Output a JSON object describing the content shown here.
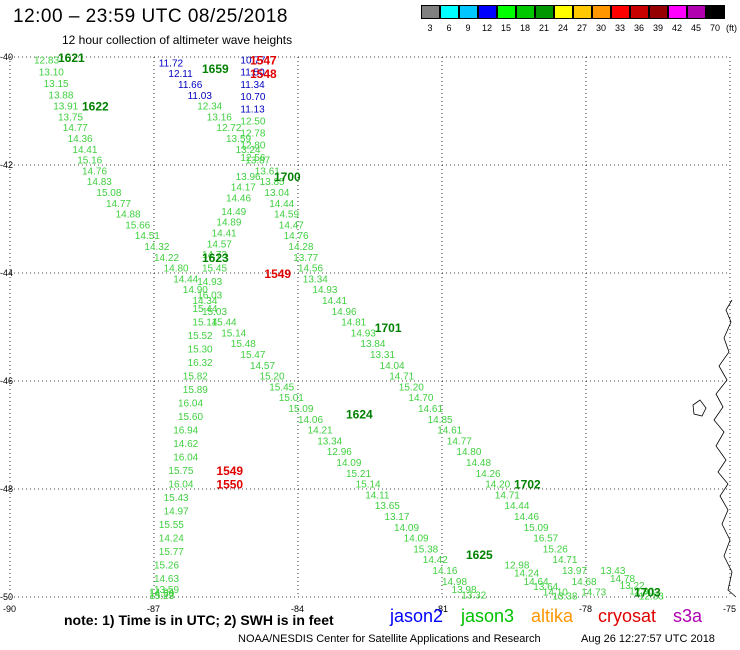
{
  "header": {
    "title": "12:00 – 23:59 UTC 08/25/2018",
    "subtitle": "12 hour collection of altimeter wave heights"
  },
  "colorbar": {
    "colors": [
      "#808080",
      "#00ffff",
      "#00c8ff",
      "#0000ff",
      "#00ff00",
      "#00c800",
      "#009600",
      "#ffff00",
      "#ffc800",
      "#ff9600",
      "#ff0000",
      "#c80000",
      "#960000",
      "#ff00ff",
      "#b000b0",
      "#000000"
    ],
    "labels": [
      "3",
      "6",
      "9",
      "12",
      "15",
      "18",
      "21",
      "24",
      "27",
      "30",
      "33",
      "36",
      "39",
      "42",
      "45",
      "70"
    ],
    "unit": "(ft)"
  },
  "chart_data": {
    "type": "scatter",
    "title": "12:00 – 23:59 UTC 08/25/2018",
    "subtitle": "12 hour collection of altimeter wave heights",
    "xlim": [
      -90,
      -75
    ],
    "ylim": [
      -50,
      -40
    ],
    "x_ticks": [
      -90,
      -87,
      -84,
      -81,
      -78,
      -75
    ],
    "y_ticks": [
      -40,
      -42,
      -44,
      -46,
      -48,
      -50
    ],
    "grid": true,
    "track_points": [
      {
        "lon": -89.5,
        "lat": -40.05,
        "v": "12.83",
        "s": "jason3"
      },
      {
        "lon": -89.4,
        "lat": -40.27,
        "v": "13.10",
        "s": "jason3"
      },
      {
        "lon": -89.3,
        "lat": -40.48,
        "v": "13.15",
        "s": "jason3"
      },
      {
        "lon": -89.2,
        "lat": -40.69,
        "v": "13.88",
        "s": "jason3"
      },
      {
        "lon": -89.1,
        "lat": -40.9,
        "v": "13.91",
        "s": "jason3"
      },
      {
        "lon": -89.0,
        "lat": -41.1,
        "v": "13.75",
        "s": "jason3"
      },
      {
        "lon": -88.9,
        "lat": -41.3,
        "v": "14.77",
        "s": "jason3"
      },
      {
        "lon": -88.8,
        "lat": -41.5,
        "v": "14.36",
        "s": "jason3"
      },
      {
        "lon": -88.7,
        "lat": -41.7,
        "v": "14.41",
        "s": "jason3"
      },
      {
        "lon": -88.6,
        "lat": -41.9,
        "v": "15.16",
        "s": "jason3"
      },
      {
        "lon": -88.5,
        "lat": -42.1,
        "v": "14.76",
        "s": "jason3"
      },
      {
        "lon": -88.4,
        "lat": -42.3,
        "v": "14.83",
        "s": "jason3"
      },
      {
        "lon": -88.2,
        "lat": -42.5,
        "v": "15.08",
        "s": "jason3"
      },
      {
        "lon": -88.0,
        "lat": -42.7,
        "v": "14.77",
        "s": "jason3"
      },
      {
        "lon": -87.8,
        "lat": -42.9,
        "v": "14.88",
        "s": "jason3"
      },
      {
        "lon": -87.6,
        "lat": -43.1,
        "v": "15.66",
        "s": "jason3"
      },
      {
        "lon": -87.4,
        "lat": -43.3,
        "v": "14.51",
        "s": "jason3"
      },
      {
        "lon": -87.2,
        "lat": -43.5,
        "v": "14.32",
        "s": "jason3"
      },
      {
        "lon": -87.0,
        "lat": -43.7,
        "v": "14.22",
        "s": "jason3"
      },
      {
        "lon": -86.8,
        "lat": -43.9,
        "v": "14.80",
        "s": "jason3"
      },
      {
        "lon": -86.6,
        "lat": -44.1,
        "v": "14.44",
        "s": "jason3"
      },
      {
        "lon": -86.4,
        "lat": -44.3,
        "v": "14.90",
        "s": "jason3"
      },
      {
        "lon": -86.2,
        "lat": -44.5,
        "v": "14.34",
        "s": "jason3"
      },
      {
        "lon": -86.0,
        "lat": -44.7,
        "v": "15.03",
        "s": "jason3"
      },
      {
        "lon": -85.8,
        "lat": -44.9,
        "v": "15.44",
        "s": "jason3"
      },
      {
        "lon": -85.6,
        "lat": -45.1,
        "v": "15.14",
        "s": "jason3"
      },
      {
        "lon": -85.4,
        "lat": -45.3,
        "v": "15.48",
        "s": "jason3"
      },
      {
        "lon": -85.2,
        "lat": -45.5,
        "v": "15.47",
        "s": "jason3"
      },
      {
        "lon": -85.0,
        "lat": -45.7,
        "v": "14.57",
        "s": "jason3"
      },
      {
        "lon": -84.8,
        "lat": -45.9,
        "v": "15.20",
        "s": "jason3"
      },
      {
        "lon": -84.6,
        "lat": -46.1,
        "v": "15.45",
        "s": "jason3"
      },
      {
        "lon": -84.4,
        "lat": -46.3,
        "v": "15.01",
        "s": "jason3"
      },
      {
        "lon": -84.2,
        "lat": -46.5,
        "v": "15.09",
        "s": "jason3"
      },
      {
        "lon": -84.0,
        "lat": -46.7,
        "v": "14.06",
        "s": "jason3"
      },
      {
        "lon": -83.8,
        "lat": -46.9,
        "v": "14.21",
        "s": "jason3"
      },
      {
        "lon": -83.6,
        "lat": -47.1,
        "v": "13.34",
        "s": "jason3"
      },
      {
        "lon": -83.4,
        "lat": -47.3,
        "v": "12.96",
        "s": "jason3"
      },
      {
        "lon": -83.2,
        "lat": -47.5,
        "v": "14.09",
        "s": "jason3"
      },
      {
        "lon": -83.0,
        "lat": -47.7,
        "v": "15.21",
        "s": "jason3"
      },
      {
        "lon": -82.8,
        "lat": -47.9,
        "v": "15.14",
        "s": "jason3"
      },
      {
        "lon": -82.6,
        "lat": -48.1,
        "v": "14.11",
        "s": "jason3"
      },
      {
        "lon": -82.4,
        "lat": -48.3,
        "v": "13.65",
        "s": "jason3"
      },
      {
        "lon": -82.2,
        "lat": -48.5,
        "v": "13.17",
        "s": "jason3"
      },
      {
        "lon": -82.0,
        "lat": -48.7,
        "v": "14.09",
        "s": "jason3"
      },
      {
        "lon": -81.8,
        "lat": -48.9,
        "v": "14.09",
        "s": "jason3"
      },
      {
        "lon": -81.6,
        "lat": -49.1,
        "v": "15.38",
        "s": "jason3"
      },
      {
        "lon": -81.4,
        "lat": -49.3,
        "v": "14.42",
        "s": "jason3"
      },
      {
        "lon": -81.2,
        "lat": -49.5,
        "v": "14.16",
        "s": "jason3"
      },
      {
        "lon": -81.0,
        "lat": -49.7,
        "v": "14.98",
        "s": "jason3"
      },
      {
        "lon": -80.8,
        "lat": -49.85,
        "v": "13.98",
        "s": "jason3"
      },
      {
        "lon": -80.6,
        "lat": -49.95,
        "v": "13.32",
        "s": "jason3"
      },
      {
        "lon": -86.9,
        "lat": -40.1,
        "v": "11.72",
        "s": "jason2"
      },
      {
        "lon": -86.7,
        "lat": -40.3,
        "v": "12.11",
        "s": "jason2"
      },
      {
        "lon": -86.5,
        "lat": -40.5,
        "v": "11.66",
        "s": "jason2"
      },
      {
        "lon": -86.3,
        "lat": -40.7,
        "v": "11.03",
        "s": "jason2"
      },
      {
        "lon": -86.1,
        "lat": -40.9,
        "v": "12.34",
        "s": "jason3"
      },
      {
        "lon": -85.9,
        "lat": -41.1,
        "v": "13.16",
        "s": "jason3"
      },
      {
        "lon": -85.7,
        "lat": -41.3,
        "v": "12.72",
        "s": "jason3"
      },
      {
        "lon": -85.5,
        "lat": -41.5,
        "v": "13.59",
        "s": "jason3"
      },
      {
        "lon": -85.3,
        "lat": -41.7,
        "v": "13.24",
        "s": "jason3"
      },
      {
        "lon": -85.1,
        "lat": -41.9,
        "v": "13.87",
        "s": "jason3"
      },
      {
        "lon": -84.9,
        "lat": -42.1,
        "v": "13.61",
        "s": "jason3"
      },
      {
        "lon": -84.8,
        "lat": -42.3,
        "v": "13.85",
        "s": "jason3"
      },
      {
        "lon": -84.7,
        "lat": -42.5,
        "v": "13.04",
        "s": "jason3"
      },
      {
        "lon": -84.6,
        "lat": -42.7,
        "v": "14.44",
        "s": "jason3"
      },
      {
        "lon": -84.5,
        "lat": -42.9,
        "v": "14.59",
        "s": "jason3"
      },
      {
        "lon": -84.4,
        "lat": -43.1,
        "v": "14.47",
        "s": "jason3"
      },
      {
        "lon": -84.3,
        "lat": -43.3,
        "v": "14.76",
        "s": "jason3"
      },
      {
        "lon": -84.2,
        "lat": -43.5,
        "v": "14.28",
        "s": "jason3"
      },
      {
        "lon": -84.1,
        "lat": -43.7,
        "v": "13.77",
        "s": "jason3"
      },
      {
        "lon": -84.0,
        "lat": -43.9,
        "v": "14.56",
        "s": "jason3"
      },
      {
        "lon": -83.9,
        "lat": -44.1,
        "v": "13.34",
        "s": "jason3"
      },
      {
        "lon": -83.7,
        "lat": -44.3,
        "v": "14.93",
        "s": "jason3"
      },
      {
        "lon": -83.5,
        "lat": -44.5,
        "v": "14.41",
        "s": "jason3"
      },
      {
        "lon": -83.3,
        "lat": -44.7,
        "v": "14.96",
        "s": "jason3"
      },
      {
        "lon": -83.1,
        "lat": -44.9,
        "v": "14.81",
        "s": "jason3"
      },
      {
        "lon": -82.9,
        "lat": -45.1,
        "v": "14.93",
        "s": "jason3"
      },
      {
        "lon": -82.7,
        "lat": -45.3,
        "v": "13.84",
        "s": "jason3"
      },
      {
        "lon": -82.5,
        "lat": -45.5,
        "v": "13.31",
        "s": "jason3"
      },
      {
        "lon": -82.3,
        "lat": -45.7,
        "v": "14.04",
        "s": "jason3"
      },
      {
        "lon": -82.1,
        "lat": -45.9,
        "v": "14.71",
        "s": "jason3"
      },
      {
        "lon": -81.9,
        "lat": -46.1,
        "v": "15.20",
        "s": "jason3"
      },
      {
        "lon": -81.7,
        "lat": -46.3,
        "v": "14.70",
        "s": "jason3"
      },
      {
        "lon": -81.5,
        "lat": -46.5,
        "v": "14.61",
        "s": "jason3"
      },
      {
        "lon": -81.3,
        "lat": -46.7,
        "v": "14.85",
        "s": "jason3"
      },
      {
        "lon": -81.1,
        "lat": -46.9,
        "v": "14.61",
        "s": "jason3"
      },
      {
        "lon": -80.9,
        "lat": -47.1,
        "v": "14.77",
        "s": "jason3"
      },
      {
        "lon": -80.7,
        "lat": -47.3,
        "v": "14.80",
        "s": "jason3"
      },
      {
        "lon": -80.5,
        "lat": -47.5,
        "v": "14.48",
        "s": "jason3"
      },
      {
        "lon": -80.3,
        "lat": -47.7,
        "v": "14.26",
        "s": "jason3"
      },
      {
        "lon": -80.1,
        "lat": -47.9,
        "v": "14.20",
        "s": "jason3"
      },
      {
        "lon": -79.9,
        "lat": -48.1,
        "v": "14.71",
        "s": "jason3"
      },
      {
        "lon": -79.7,
        "lat": -48.3,
        "v": "14.44",
        "s": "jason3"
      },
      {
        "lon": -79.5,
        "lat": -48.5,
        "v": "14.46",
        "s": "jason3"
      },
      {
        "lon": -79.3,
        "lat": -48.7,
        "v": "15.09",
        "s": "jason3"
      },
      {
        "lon": -79.1,
        "lat": -48.9,
        "v": "16.57",
        "s": "jason3"
      },
      {
        "lon": -78.9,
        "lat": -49.1,
        "v": "15.26",
        "s": "jason3"
      },
      {
        "lon": -78.7,
        "lat": -49.3,
        "v": "14.71",
        "s": "jason3"
      },
      {
        "lon": -78.5,
        "lat": -49.5,
        "v": "13.97",
        "s": "jason3"
      },
      {
        "lon": -78.3,
        "lat": -49.7,
        "v": "14.68",
        "s": "jason3"
      },
      {
        "lon": -78.1,
        "lat": -49.9,
        "v": "14.73",
        "s": "jason3"
      },
      {
        "lon": -85.2,
        "lat": -40.05,
        "v": "10.77",
        "s": "jason2"
      },
      {
        "lon": -85.2,
        "lat": -40.27,
        "v": "11.50",
        "s": "jason2"
      },
      {
        "lon": -85.2,
        "lat": -40.5,
        "v": "11.34",
        "s": "jason2"
      },
      {
        "lon": -85.2,
        "lat": -40.72,
        "v": "10.70",
        "s": "jason2"
      },
      {
        "lon": -85.2,
        "lat": -40.95,
        "v": "11.13",
        "s": "jason2"
      },
      {
        "lon": -85.2,
        "lat": -41.18,
        "v": "12.50",
        "s": "jason3"
      },
      {
        "lon": -85.2,
        "lat": -41.4,
        "v": "12.78",
        "s": "jason3"
      },
      {
        "lon": -85.2,
        "lat": -41.62,
        "v": "12.80",
        "s": "jason3"
      },
      {
        "lon": -85.2,
        "lat": -41.85,
        "v": "12.56",
        "s": "jason3"
      },
      {
        "lon": -85.3,
        "lat": -42.2,
        "v": "13.96",
        "s": "jason3"
      },
      {
        "lon": -85.4,
        "lat": -42.4,
        "v": "14.17",
        "s": "jason3"
      },
      {
        "lon": -85.5,
        "lat": -42.6,
        "v": "14.46",
        "s": "jason3"
      },
      {
        "lon": -85.6,
        "lat": -42.85,
        "v": "14.49",
        "s": "jason3"
      },
      {
        "lon": -85.7,
        "lat": -43.05,
        "v": "14.89",
        "s": "jason3"
      },
      {
        "lon": -85.8,
        "lat": -43.25,
        "v": "14.41",
        "s": "jason3"
      },
      {
        "lon": -85.9,
        "lat": -43.45,
        "v": "14.57",
        "s": "jason3"
      },
      {
        "lon": -86.0,
        "lat": -43.65,
        "v": "14.73",
        "s": "jason3"
      },
      {
        "lon": -86.0,
        "lat": -43.9,
        "v": "15.45",
        "s": "jason3"
      },
      {
        "lon": -86.1,
        "lat": -44.15,
        "v": "14.93",
        "s": "jason3"
      },
      {
        "lon": -86.1,
        "lat": -44.4,
        "v": "16.03",
        "s": "jason3"
      },
      {
        "lon": -86.2,
        "lat": -44.65,
        "v": "15.44",
        "s": "jason3"
      },
      {
        "lon": -86.2,
        "lat": -44.9,
        "v": "15.14",
        "s": "jason3"
      },
      {
        "lon": -86.3,
        "lat": -45.15,
        "v": "15.52",
        "s": "jason3"
      },
      {
        "lon": -86.3,
        "lat": -45.4,
        "v": "15.30",
        "s": "jason3"
      },
      {
        "lon": -86.3,
        "lat": -45.65,
        "v": "16.32",
        "s": "jason3"
      },
      {
        "lon": -86.4,
        "lat": -45.9,
        "v": "15.82",
        "s": "jason3"
      },
      {
        "lon": -86.4,
        "lat": -46.15,
        "v": "15.89",
        "s": "jason3"
      },
      {
        "lon": -86.5,
        "lat": -46.4,
        "v": "16.04",
        "s": "jason3"
      },
      {
        "lon": -86.5,
        "lat": -46.65,
        "v": "15.60",
        "s": "jason3"
      },
      {
        "lon": -86.6,
        "lat": -46.9,
        "v": "16.94",
        "s": "jason3"
      },
      {
        "lon": -86.6,
        "lat": -47.15,
        "v": "14.62",
        "s": "jason3"
      },
      {
        "lon": -86.6,
        "lat": -47.4,
        "v": "16.04",
        "s": "jason3"
      },
      {
        "lon": -86.7,
        "lat": -47.65,
        "v": "15.75",
        "s": "jason3"
      },
      {
        "lon": -86.7,
        "lat": -47.9,
        "v": "16.04",
        "s": "jason3"
      },
      {
        "lon": -86.8,
        "lat": -48.15,
        "v": "15.43",
        "s": "jason3"
      },
      {
        "lon": -86.8,
        "lat": -48.4,
        "v": "14.97",
        "s": "jason3"
      },
      {
        "lon": -86.9,
        "lat": -48.65,
        "v": "15.55",
        "s": "jason3"
      },
      {
        "lon": -86.9,
        "lat": -48.9,
        "v": "14.24",
        "s": "jason3"
      },
      {
        "lon": -86.9,
        "lat": -49.15,
        "v": "15.77",
        "s": "jason3"
      },
      {
        "lon": -87.0,
        "lat": -49.4,
        "v": "15.26",
        "s": "jason3"
      },
      {
        "lon": -87.0,
        "lat": -49.65,
        "v": "14.63",
        "s": "jason3"
      },
      {
        "lon": -87.0,
        "lat": -49.85,
        "v": "13.59",
        "s": "jason3"
      },
      {
        "lon": -87.1,
        "lat": -49.9,
        "v": "14.94",
        "s": "jason3"
      },
      {
        "lon": -87.1,
        "lat": -49.93,
        "v": "14.50",
        "s": "jason3"
      },
      {
        "lon": -87.1,
        "lat": -49.96,
        "v": "15.23",
        "s": "jason3"
      },
      {
        "lon": -79.7,
        "lat": -49.4,
        "v": "12.98",
        "s": "jason3"
      },
      {
        "lon": -79.5,
        "lat": -49.55,
        "v": "14.24",
        "s": "jason3"
      },
      {
        "lon": -79.3,
        "lat": -49.7,
        "v": "14.64",
        "s": "jason3"
      },
      {
        "lon": -79.1,
        "lat": -49.8,
        "v": "13.64",
        "s": "jason3"
      },
      {
        "lon": -78.9,
        "lat": -49.9,
        "v": "14.10",
        "s": "jason3"
      },
      {
        "lon": -78.7,
        "lat": -49.97,
        "v": "13.38",
        "s": "jason3"
      },
      {
        "lon": -77.7,
        "lat": -49.5,
        "v": "13.43",
        "s": "jason3"
      },
      {
        "lon": -77.5,
        "lat": -49.65,
        "v": "14.78",
        "s": "jason3"
      },
      {
        "lon": -77.3,
        "lat": -49.78,
        "v": "13.22",
        "s": "jason3"
      },
      {
        "lon": -77.1,
        "lat": -49.88,
        "v": "12.90",
        "s": "jason3"
      },
      {
        "lon": -76.9,
        "lat": -49.97,
        "v": "12.83",
        "s": "jason3"
      }
    ],
    "time_labels": [
      {
        "lon": -89.0,
        "lat": -40.0,
        "t": "1621",
        "s": "jason3"
      },
      {
        "lon": -86.0,
        "lat": -40.2,
        "t": "1659",
        "s": "jason3"
      },
      {
        "lon": -88.5,
        "lat": -40.9,
        "t": "1622",
        "s": "jason3"
      },
      {
        "lon": -85.0,
        "lat": -40.05,
        "t": "1547",
        "s": "cryosat"
      },
      {
        "lon": -85.0,
        "lat": -40.3,
        "t": "1548",
        "s": "cryosat"
      },
      {
        "lon": -84.5,
        "lat": -42.2,
        "t": "1700",
        "s": "jason3"
      },
      {
        "lon": -86.0,
        "lat": -43.7,
        "t": "1623",
        "s": "jason3"
      },
      {
        "lon": -84.7,
        "lat": -44.0,
        "t": "1549",
        "s": "cryosat"
      },
      {
        "lon": -82.4,
        "lat": -45.0,
        "t": "1701",
        "s": "jason3"
      },
      {
        "lon": -83.0,
        "lat": -46.6,
        "t": "1624",
        "s": "jason3"
      },
      {
        "lon": -85.7,
        "lat": -47.65,
        "t": "1549",
        "s": "cryosat"
      },
      {
        "lon": -85.7,
        "lat": -47.9,
        "t": "1550",
        "s": "cryosat"
      },
      {
        "lon": -79.5,
        "lat": -47.9,
        "t": "1702",
        "s": "jason3"
      },
      {
        "lon": -80.5,
        "lat": -49.2,
        "t": "1625",
        "s": "jason3"
      },
      {
        "lon": -77.0,
        "lat": -49.9,
        "t": "1703",
        "s": "jason3"
      }
    ],
    "legend": [
      {
        "name": "jason2",
        "color": "#0000ff"
      },
      {
        "name": "jason3",
        "color": "#00c000"
      },
      {
        "name": "altika",
        "color": "#ff9600"
      },
      {
        "name": "cryosat",
        "color": "#e00000"
      },
      {
        "name": "s3a",
        "color": "#b000b0"
      }
    ]
  },
  "footer": {
    "note": "note: 1) Time is in UTC; 2) SWH is in feet",
    "credit": "NOAA/NESDIS Center for Satellite Applications and Research",
    "stamp": "Aug 26 12:27:57 UTC 2018"
  }
}
